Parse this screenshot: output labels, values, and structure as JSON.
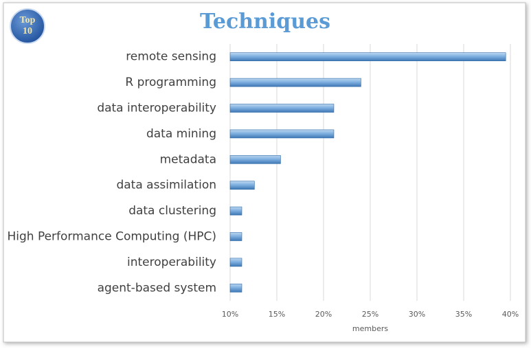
{
  "chart_data": {
    "type": "bar",
    "orientation": "horizontal",
    "title": "Techniques",
    "badge": [
      "Top",
      "10"
    ],
    "categories": [
      "remote sensing",
      "R programming",
      "data interoperability",
      "data mining",
      "metadata",
      "data assimilation",
      "data clustering",
      "High Performance Computing (HPC)",
      "interoperability",
      "agent-based system"
    ],
    "values": [
      39.5,
      24,
      21.1,
      21.1,
      15.4,
      12.6,
      11.25,
      11.25,
      11.25,
      11.25
    ],
    "color": "#5b9bd5",
    "xlim": [
      10,
      40
    ],
    "xticks": [
      {
        "value": 10,
        "label": "10%"
      },
      {
        "value": 15,
        "label": "15%"
      },
      {
        "value": 20,
        "label": "20%"
      },
      {
        "value": 25,
        "label": "25%"
      },
      {
        "value": 30,
        "label": "30%"
      },
      {
        "value": 35,
        "label": "35%"
      },
      {
        "value": 40,
        "label": "40%"
      }
    ],
    "xlabel": "members",
    "grid": true
  }
}
